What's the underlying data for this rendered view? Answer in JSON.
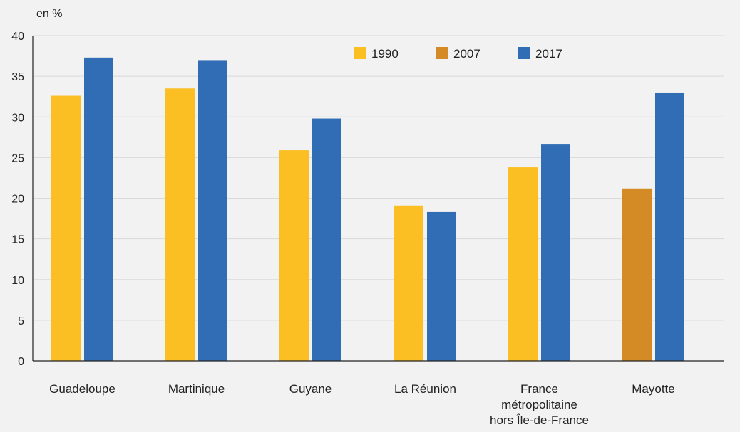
{
  "chart_data": {
    "type": "bar",
    "unit_label": "en %",
    "title": "",
    "xlabel": "",
    "ylabel": "",
    "ylim": [
      0,
      40
    ],
    "yticks": [
      0,
      5,
      10,
      15,
      20,
      25,
      30,
      35,
      40
    ],
    "grid": true,
    "legend_position": "top-center",
    "categories": [
      [
        "Guadeloupe"
      ],
      [
        "Martinique"
      ],
      [
        "Guyane"
      ],
      [
        "La Réunion"
      ],
      [
        "France",
        "métropolitaine",
        "hors Île-de-France"
      ],
      [
        "Mayotte"
      ]
    ],
    "series": [
      {
        "name": "1990",
        "color": "#fbbf24",
        "values": [
          32.6,
          33.5,
          25.9,
          19.1,
          23.8,
          null
        ]
      },
      {
        "name": "2007",
        "color": "#d48b26",
        "values": [
          null,
          null,
          null,
          null,
          null,
          21.2
        ]
      },
      {
        "name": "2017",
        "color": "#316db5",
        "values": [
          37.3,
          36.9,
          29.8,
          18.3,
          26.6,
          33.0
        ]
      }
    ],
    "colors": {
      "background": "#f2f2f2",
      "grid": "#d9d9d9",
      "axis": "#222222",
      "text": "#222222"
    }
  }
}
